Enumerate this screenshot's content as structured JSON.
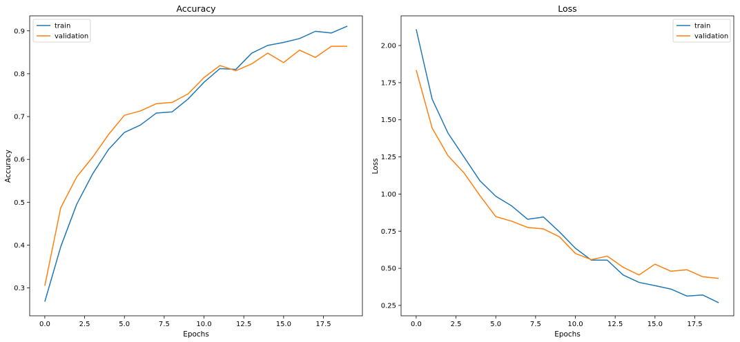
{
  "chart_data": [
    {
      "type": "line",
      "title": "Accuracy",
      "xlabel": "Epochs",
      "ylabel": "Accuracy",
      "xlim": [
        -0.95,
        19.95
      ],
      "ylim": [
        0.235,
        0.935
      ],
      "x_ticks": [
        0.0,
        2.5,
        5.0,
        7.5,
        10.0,
        12.5,
        15.0,
        17.5
      ],
      "x_tick_labels": [
        "0.0",
        "2.5",
        "5.0",
        "7.5",
        "10.0",
        "12.5",
        "15.0",
        "17.5"
      ],
      "y_ticks": [
        0.3,
        0.4,
        0.5,
        0.6,
        0.7,
        0.8,
        0.9
      ],
      "y_tick_labels": [
        "0.3",
        "0.4",
        "0.5",
        "0.6",
        "0.7",
        "0.8",
        "0.9"
      ],
      "grid": false,
      "legend": "top-left",
      "x": [
        0,
        1,
        2,
        3,
        4,
        5,
        6,
        7,
        8,
        9,
        10,
        11,
        12,
        13,
        14,
        15,
        16,
        17,
        18,
        19
      ],
      "series": [
        {
          "name": "train",
          "color": "#1f77b4",
          "values": [
            0.268,
            0.396,
            0.495,
            0.566,
            0.623,
            0.663,
            0.68,
            0.708,
            0.711,
            0.741,
            0.78,
            0.812,
            0.81,
            0.848,
            0.866,
            0.873,
            0.882,
            0.899,
            0.895,
            0.911
          ]
        },
        {
          "name": "validation",
          "color": "#ff7f0e",
          "values": [
            0.305,
            0.487,
            0.559,
            0.605,
            0.658,
            0.703,
            0.713,
            0.73,
            0.733,
            0.753,
            0.791,
            0.819,
            0.807,
            0.823,
            0.848,
            0.826,
            0.855,
            0.838,
            0.864,
            0.864
          ]
        }
      ]
    },
    {
      "type": "line",
      "title": "Loss",
      "xlabel": "Epochs",
      "ylabel": "Loss",
      "xlim": [
        -0.95,
        19.95
      ],
      "ylim": [
        0.18,
        2.2
      ],
      "x_ticks": [
        0.0,
        2.5,
        5.0,
        7.5,
        10.0,
        12.5,
        15.0,
        17.5
      ],
      "x_tick_labels": [
        "0.0",
        "2.5",
        "5.0",
        "7.5",
        "10.0",
        "12.5",
        "15.0",
        "17.5"
      ],
      "y_ticks": [
        0.25,
        0.5,
        0.75,
        1.0,
        1.25,
        1.5,
        1.75,
        2.0
      ],
      "y_tick_labels": [
        "0.25",
        "0.50",
        "0.75",
        "1.00",
        "1.25",
        "1.50",
        "1.75",
        "2.00"
      ],
      "grid": false,
      "legend": "top-right",
      "x": [
        0,
        1,
        2,
        3,
        4,
        5,
        6,
        7,
        8,
        9,
        10,
        11,
        12,
        13,
        14,
        15,
        16,
        17,
        18,
        19
      ],
      "series": [
        {
          "name": "train",
          "color": "#1f77b4",
          "values": [
            2.11,
            1.64,
            1.41,
            1.25,
            1.09,
            0.985,
            0.92,
            0.83,
            0.845,
            0.745,
            0.635,
            0.555,
            0.555,
            0.455,
            0.405,
            0.383,
            0.36,
            0.313,
            0.32,
            0.268
          ]
        },
        {
          "name": "validation",
          "color": "#ff7f0e",
          "values": [
            1.835,
            1.445,
            1.258,
            1.143,
            0.99,
            0.848,
            0.817,
            0.775,
            0.765,
            0.712,
            0.6,
            0.558,
            0.582,
            0.507,
            0.455,
            0.528,
            0.48,
            0.49,
            0.443,
            0.432
          ]
        }
      ]
    }
  ]
}
